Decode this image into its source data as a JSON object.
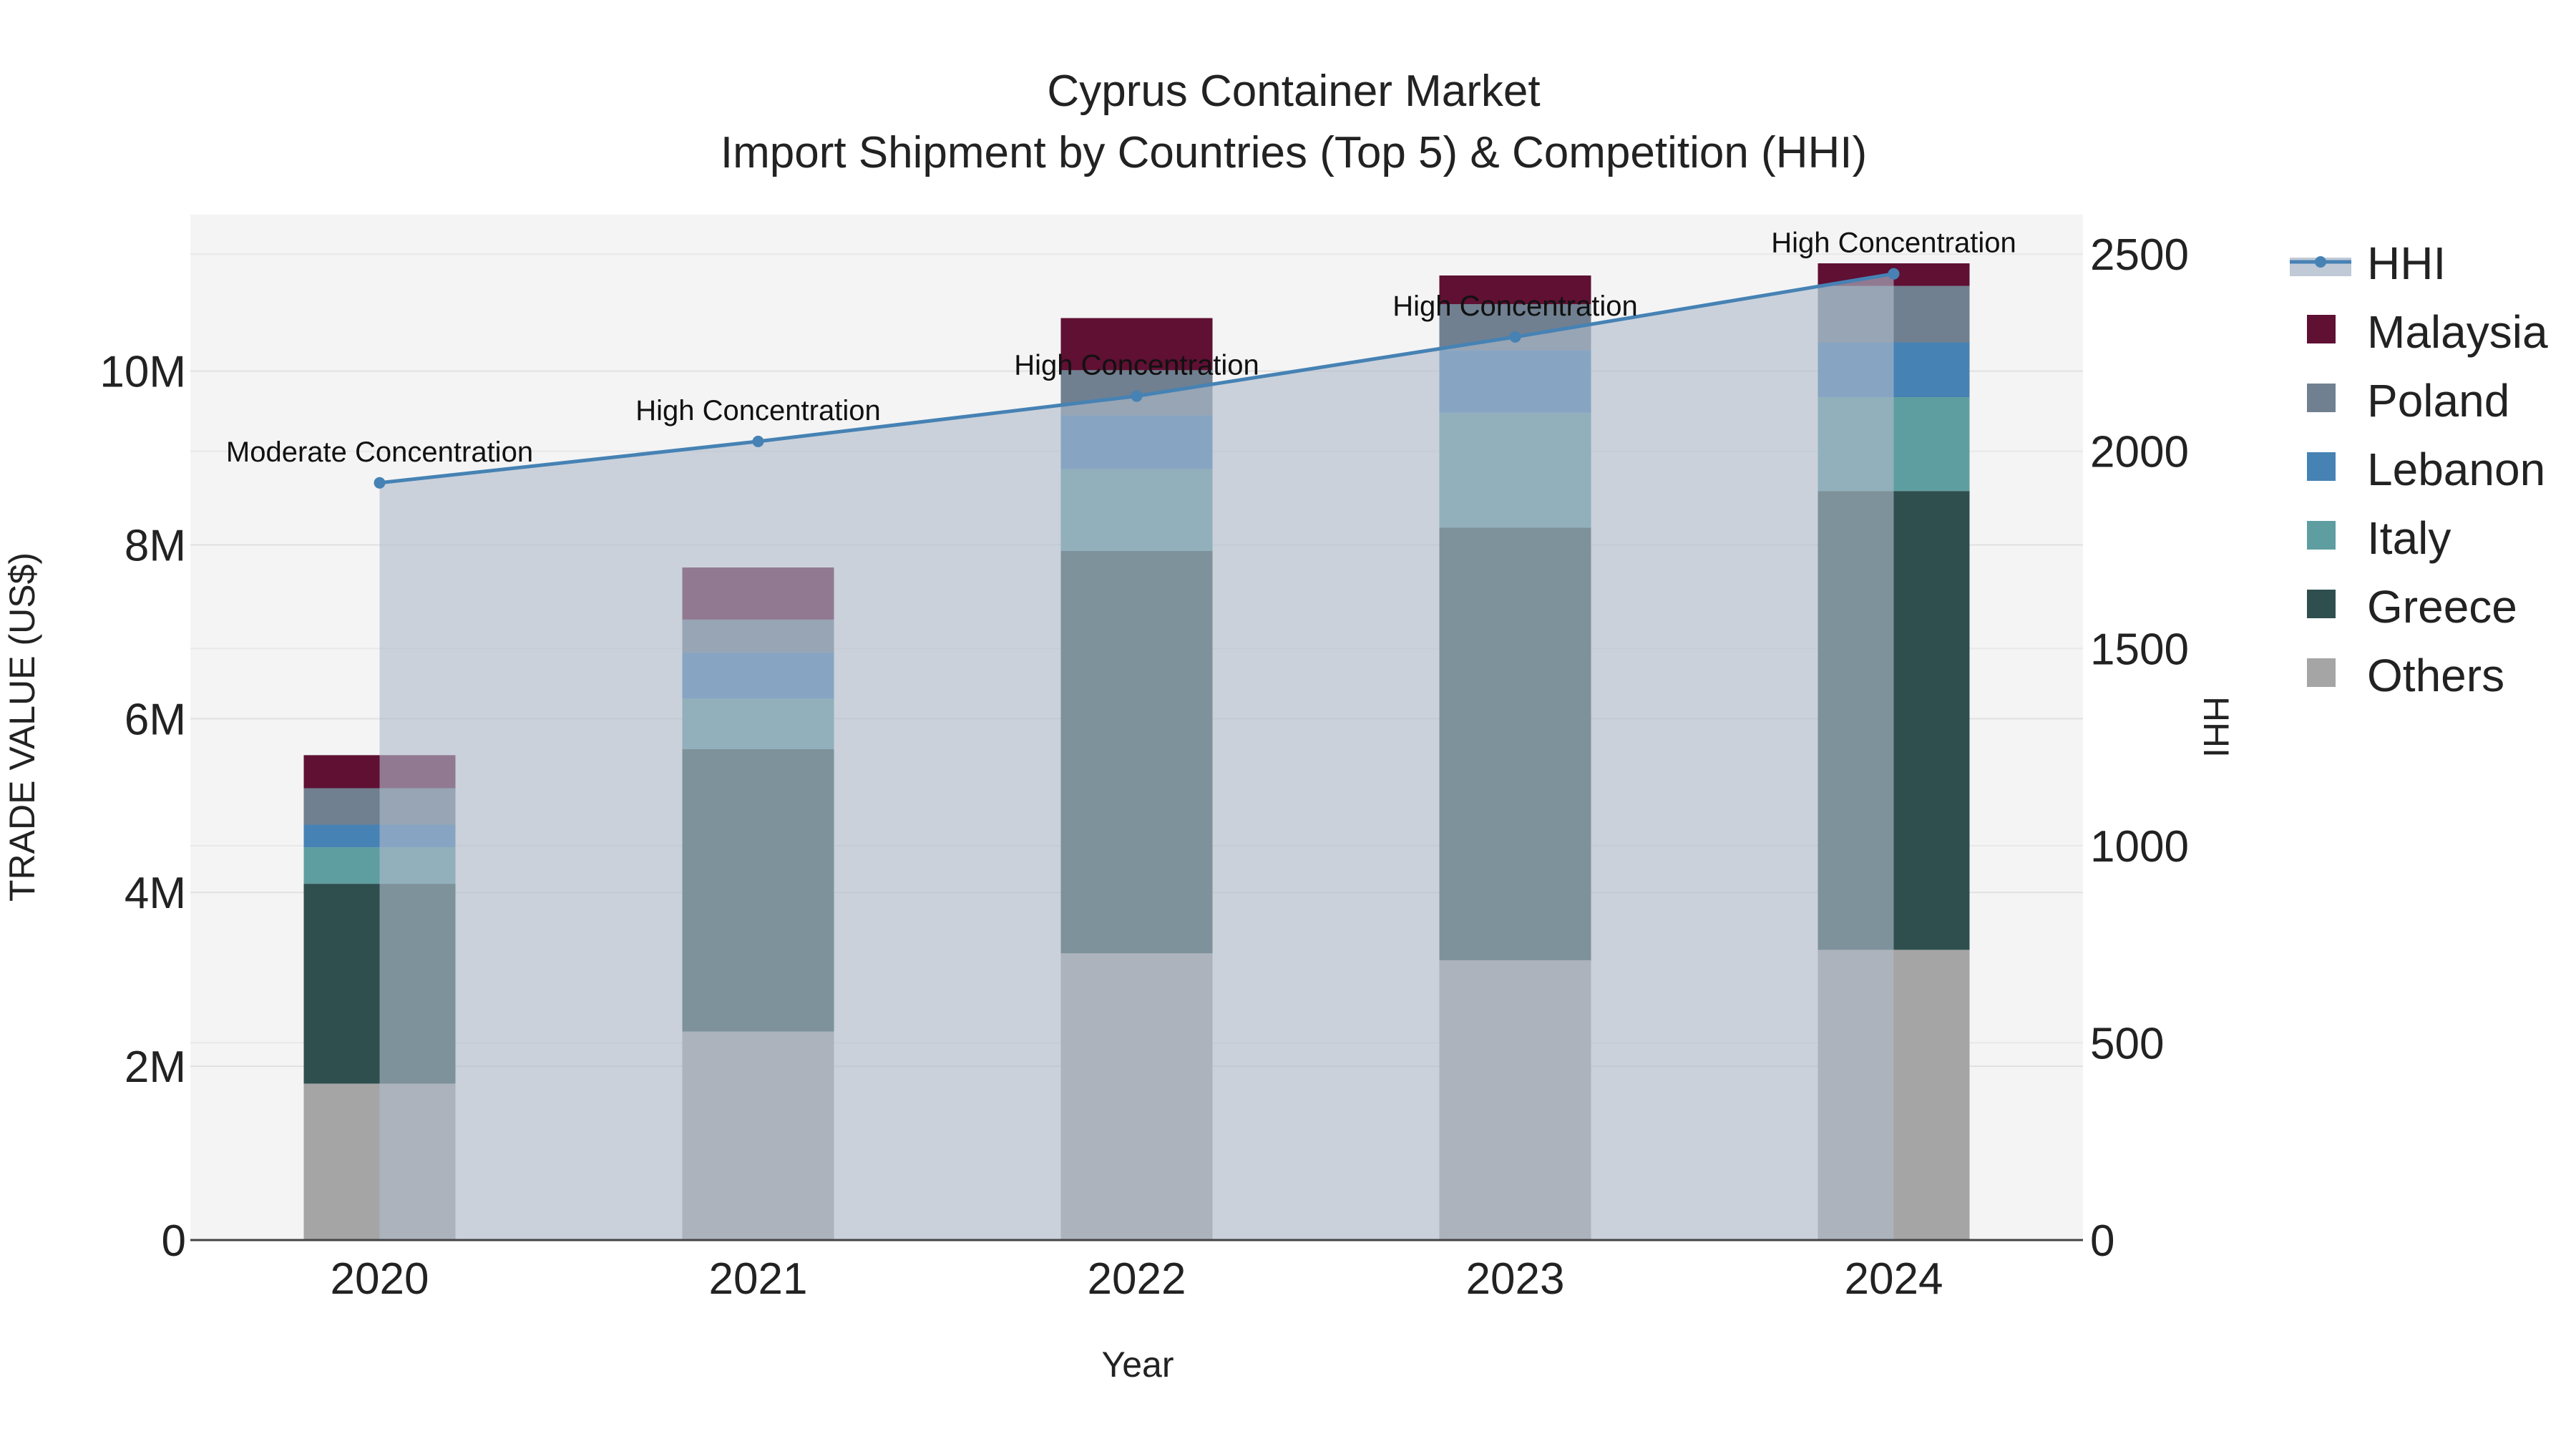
{
  "chart_data": {
    "type": "bar",
    "title": "Cyprus Container Market",
    "subtitle": "Import Shipment by Countries (Top 5) & Competition (HHI)",
    "xlabel": "Year",
    "ylabel": "TRADE VALUE (US$)",
    "y2label": "HHI",
    "categories": [
      "2020",
      "2021",
      "2022",
      "2023",
      "2024"
    ],
    "ylim": [
      0,
      11800000
    ],
    "y2lim": [
      0,
      2600
    ],
    "y_ticks": [
      {
        "value": 0,
        "label": "0"
      },
      {
        "value": 2000000,
        "label": "2M"
      },
      {
        "value": 4000000,
        "label": "4M"
      },
      {
        "value": 6000000,
        "label": "6M"
      },
      {
        "value": 8000000,
        "label": "8M"
      },
      {
        "value": 10000000,
        "label": "10M"
      }
    ],
    "y2_ticks": [
      {
        "value": 0,
        "label": "0"
      },
      {
        "value": 500,
        "label": "500"
      },
      {
        "value": 1000,
        "label": "1000"
      },
      {
        "value": 1500,
        "label": "1500"
      },
      {
        "value": 2000,
        "label": "2000"
      },
      {
        "value": 2500,
        "label": "2500"
      }
    ],
    "series": [
      {
        "name": "Others",
        "color": "#a5a5a5",
        "values": [
          1800000,
          2400000,
          3300000,
          3220000,
          3340000
        ]
      },
      {
        "name": "Greece",
        "color": "#2f4f4f",
        "values": [
          2300000,
          3250000,
          4630000,
          4980000,
          5280000
        ]
      },
      {
        "name": "Italy",
        "color": "#5f9ea0",
        "values": [
          420000,
          580000,
          940000,
          1320000,
          1080000
        ]
      },
      {
        "name": "Lebanon",
        "color": "#4682b4",
        "values": [
          260000,
          530000,
          620000,
          720000,
          630000
        ]
      },
      {
        "name": "Poland",
        "color": "#708090",
        "values": [
          420000,
          380000,
          520000,
          530000,
          650000
        ]
      },
      {
        "name": "Malaysia",
        "color": "#5f1033",
        "values": [
          380000,
          600000,
          600000,
          330000,
          260000
        ]
      }
    ],
    "hhi": {
      "name": "HHI",
      "color": "#4682b4",
      "values": [
        1920,
        2025,
        2140,
        2290,
        2450
      ],
      "annotations": [
        "Moderate Concentration",
        "High Concentration",
        "High Concentration",
        "High Concentration",
        "High Concentration"
      ]
    },
    "legend": [
      "HHI",
      "Malaysia",
      "Poland",
      "Lebanon",
      "Italy",
      "Greece",
      "Others"
    ],
    "legend_position": "right"
  }
}
